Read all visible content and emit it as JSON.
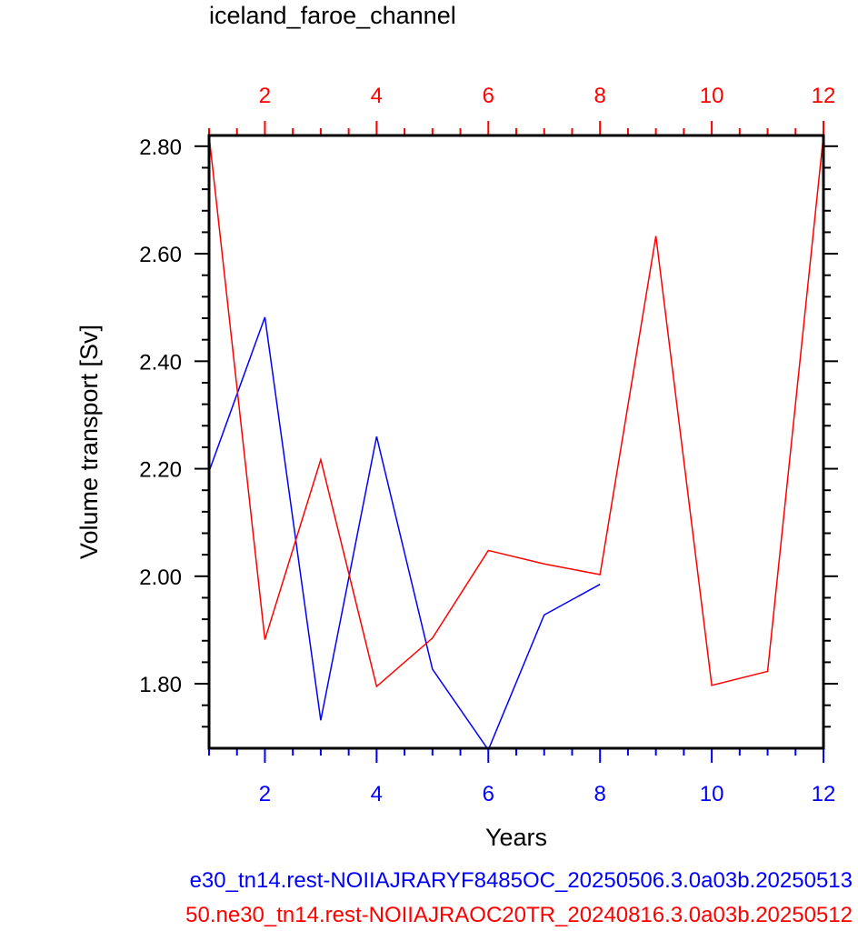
{
  "chart_data": {
    "type": "line",
    "title": "iceland_faroe_channel",
    "xlabel": "Years",
    "ylabel": "Volume transport [Sv]",
    "xlim": [
      1,
      12
    ],
    "ylim": [
      1.68,
      2.82
    ],
    "bottom_axis": {
      "color": "#0000ff",
      "ticks": [
        "2",
        "4",
        "6",
        "8",
        "10",
        "12"
      ]
    },
    "top_axis": {
      "color": "#ff0000",
      "ticks": [
        "2",
        "4",
        "6",
        "8",
        "10",
        "12"
      ]
    },
    "y_ticks": [
      "1.80",
      "2.00",
      "2.20",
      "2.40",
      "2.60",
      "2.80"
    ],
    "series": [
      {
        "color": "#0000ff",
        "x": [
          1,
          2,
          3,
          4,
          5,
          6,
          7,
          8
        ],
        "y": [
          2.195,
          2.482,
          1.732,
          2.26,
          1.827,
          1.677,
          1.928,
          1.985
        ]
      },
      {
        "color": "#ff0000",
        "x": [
          1,
          2,
          3,
          4,
          5,
          6,
          7,
          8,
          9,
          10,
          11,
          12
        ],
        "y": [
          2.82,
          1.882,
          2.217,
          1.795,
          1.885,
          2.048,
          2.023,
          2.003,
          2.633,
          1.797,
          1.823,
          2.82
        ]
      }
    ],
    "captions": [
      "e30_tn14.rest-NOIIAJRARYF8485OC_20250506.3.0a03b.20250513",
      "50.ne30_tn14.rest-NOIIAJRAOC20TR_20240816.3.0a03b.20250512"
    ]
  }
}
